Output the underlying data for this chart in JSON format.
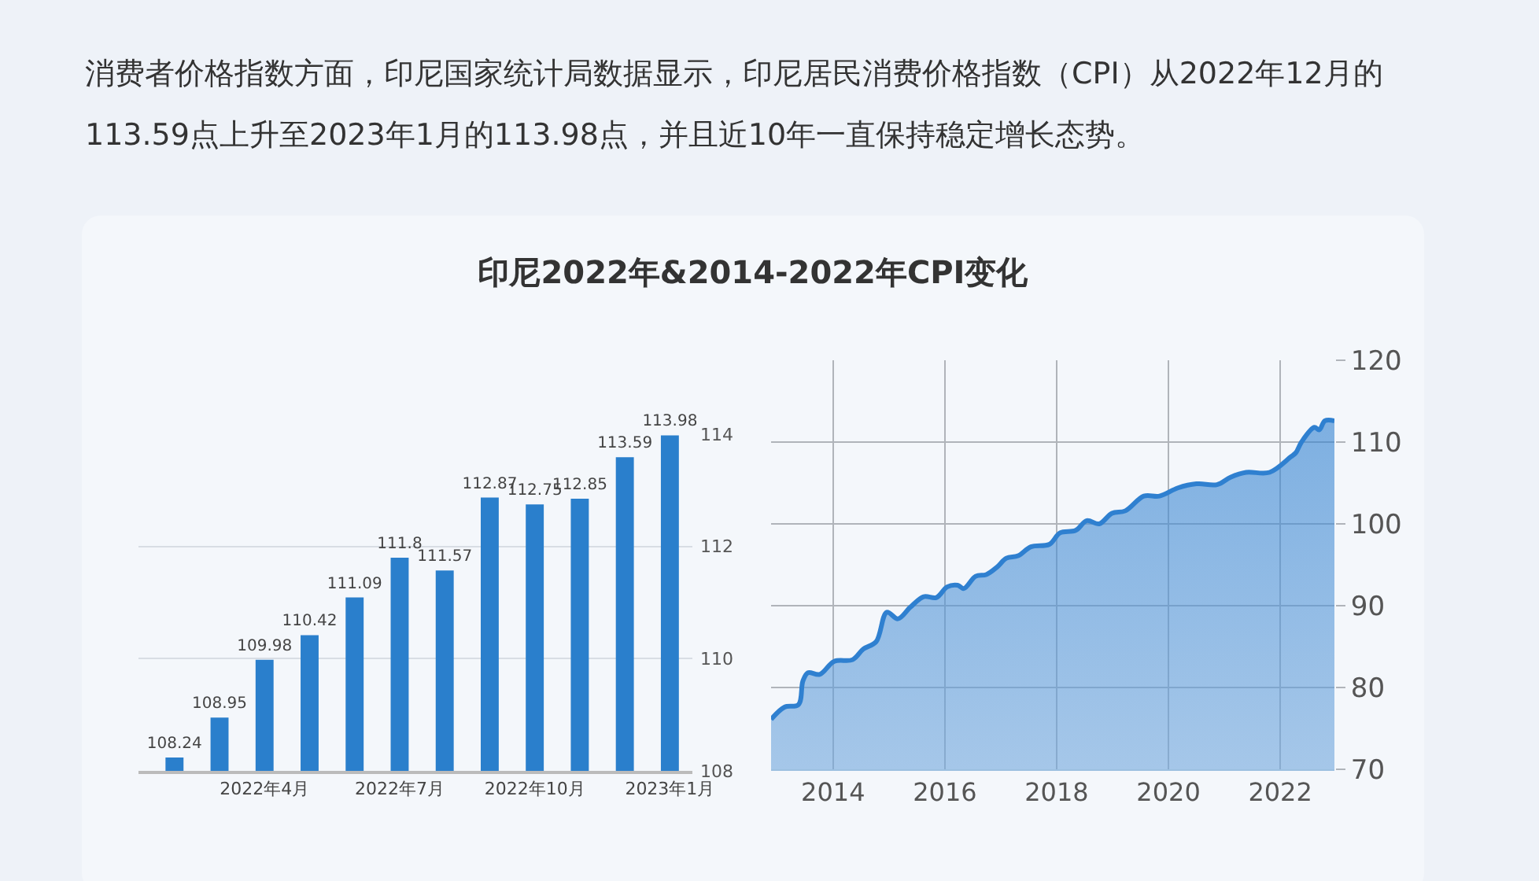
{
  "chart_data": [
    {
      "type": "bar",
      "title": "印尼2022年&2014-2022年CPI变化",
      "annotations": [
        "消费者价格指数方面，印尼国家统计局数据显示，印尼居民消费价格指数（CPI）从2022年12月的113.59点上升至2023年1月的113.98点，并且近10年一直保持稳定增长态势。"
      ],
      "categories": [
        null,
        null,
        "2022年4月",
        null,
        null,
        "2022年7月",
        null,
        null,
        "2022年10月",
        null,
        null,
        "2023年1月"
      ],
      "values": [
        108.24,
        108.95,
        109.98,
        110.42,
        111.09,
        111.8,
        111.57,
        112.87,
        112.75,
        112.85,
        113.59,
        113.98
      ],
      "color": "#2a7fcc",
      "ylim": [
        108,
        114
      ],
      "yticks": [
        108,
        110,
        112,
        114
      ],
      "grid": "y",
      "data_labels": true
    },
    {
      "type": "area",
      "series": [
        {
          "color": "#2f80d0",
          "x": [
            2012.89,
            2013.13,
            2013.38,
            2013.46,
            2013.55,
            2013.76,
            2014.02,
            2014.35,
            2014.54,
            2014.77,
            2014.96,
            2015.16,
            2015.38,
            2015.62,
            2015.85,
            2016.04,
            2016.23,
            2016.34,
            2016.55,
            2016.74,
            2016.93,
            2017.1,
            2017.31,
            2017.54,
            2017.87,
            2018.06,
            2018.34,
            2018.54,
            2018.76,
            2018.99,
            2019.23,
            2019.56,
            2019.84,
            2020.17,
            2020.5,
            2020.87,
            2021.11,
            2021.39,
            2021.81,
            2022.19,
            2022.28,
            2022.38,
            2022.61,
            2022.7,
            2022.8,
            2022.97
          ],
          "values": [
            76.1,
            77.6,
            77.9,
            80.8,
            81.8,
            81.6,
            83.2,
            83.4,
            84.7,
            85.6,
            89.2,
            88.4,
            89.8,
            91.1,
            91.0,
            92.3,
            92.5,
            92.1,
            93.6,
            93.8,
            94.7,
            95.8,
            96.1,
            97.2,
            97.5,
            98.9,
            99.2,
            100.4,
            100.0,
            101.3,
            101.6,
            103.4,
            103.4,
            104.4,
            104.9,
            104.8,
            105.7,
            106.3,
            106.3,
            108.2,
            108.7,
            110.0,
            111.8,
            111.5,
            112.6,
            112.6
          ]
        }
      ],
      "xlim": [
        2012.89,
        2022.97
      ],
      "xticks": [
        2014,
        2016,
        2018,
        2020,
        2022
      ],
      "ylim": [
        70,
        120
      ],
      "yticks": [
        70,
        80,
        90,
        100,
        110,
        120
      ],
      "grid": true
    }
  ]
}
